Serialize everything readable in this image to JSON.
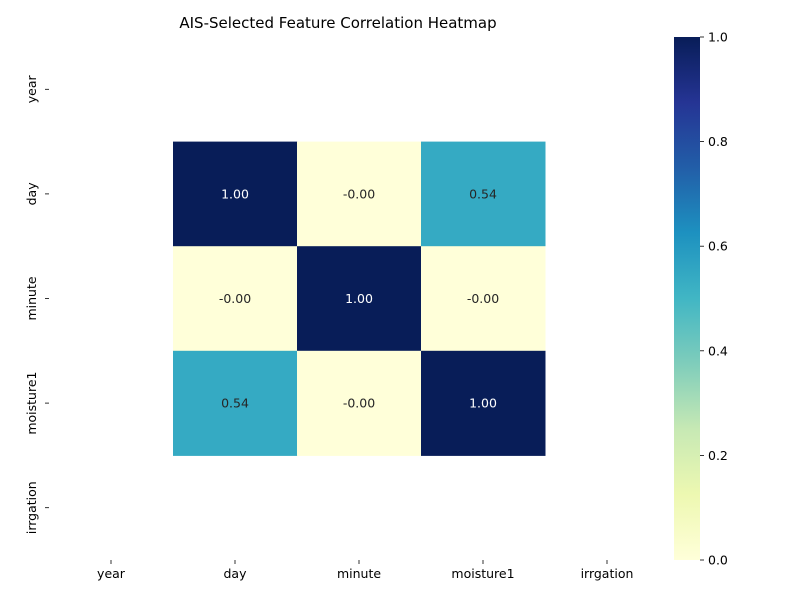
{
  "chart_data": {
    "type": "heatmap",
    "title": "AIS-Selected Feature Correlation Heatmap",
    "xlabel": "",
    "ylabel": "",
    "x_categories": [
      "year",
      "day",
      "minute",
      "moisture1",
      "irrgation"
    ],
    "y_categories": [
      "year",
      "day",
      "minute",
      "moisture1",
      "irrgation"
    ],
    "values": [
      [
        null,
        null,
        null,
        null,
        null
      ],
      [
        null,
        1.0,
        -0.0,
        0.54,
        null
      ],
      [
        null,
        -0.0,
        1.0,
        -0.0,
        null
      ],
      [
        null,
        0.54,
        -0.0,
        1.0,
        null
      ],
      [
        null,
        null,
        null,
        null,
        null
      ]
    ],
    "cell_labels": [
      [
        "",
        "",
        "",
        "",
        ""
      ],
      [
        "",
        "1.00",
        "-0.00",
        "0.54",
        ""
      ],
      [
        "",
        "-0.00",
        "1.00",
        "-0.00",
        ""
      ],
      [
        "",
        "0.54",
        "-0.00",
        "1.00",
        ""
      ],
      [
        "",
        "",
        "",
        "",
        ""
      ]
    ],
    "colormap": "YlGnBu",
    "colorbar": {
      "range": [
        0.0,
        1.0
      ],
      "ticks": [
        0.0,
        0.2,
        0.4,
        0.6,
        0.8,
        1.0
      ],
      "tick_labels": [
        "0.0",
        "0.2",
        "0.4",
        "0.6",
        "0.8",
        "1.0"
      ]
    },
    "grid": false
  }
}
